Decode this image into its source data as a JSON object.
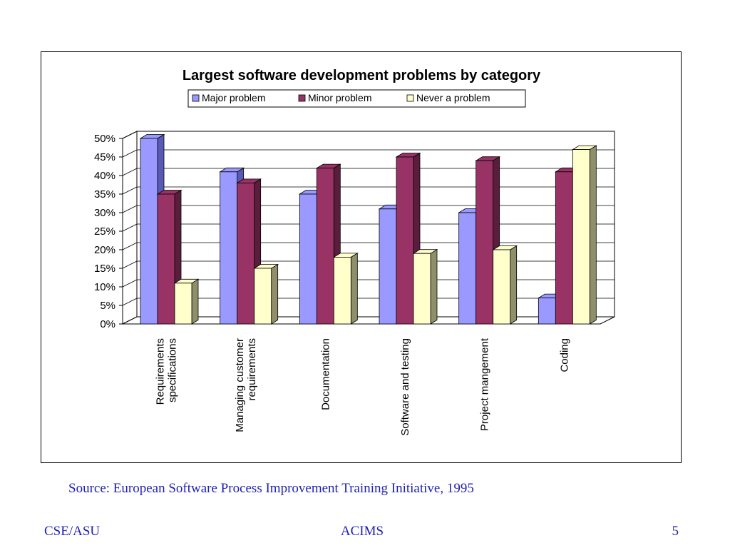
{
  "chart_data": {
    "type": "bar",
    "title": "Largest software development problems by category",
    "categories": [
      [
        "Requirements",
        "specifications"
      ],
      [
        "Managing customer",
        "requirements"
      ],
      [
        "Documentation"
      ],
      [
        "Software and testing"
      ],
      [
        "Project mangement"
      ],
      [
        "Coding"
      ]
    ],
    "series": [
      {
        "name": "Major problem",
        "values": [
          50,
          41,
          35,
          31,
          30,
          7
        ],
        "color": "#9999ff",
        "side": "#5a5ab5"
      },
      {
        "name": "Minor problem",
        "values": [
          35,
          38,
          42,
          45,
          44,
          41
        ],
        "color": "#993366",
        "side": "#5a1e3c"
      },
      {
        "name": "Never a problem",
        "values": [
          11,
          15,
          18,
          19,
          20,
          47
        ],
        "color": "#ffffcc",
        "side": "#8f8f6c"
      }
    ],
    "ylim": [
      0,
      50
    ],
    "yticks": [
      "0%",
      "5%",
      "10%",
      "15%",
      "20%",
      "25%",
      "30%",
      "35%",
      "40%",
      "45%",
      "50%"
    ],
    "grid": true,
    "legend_position": "top-center",
    "bar_style": "3d"
  },
  "source_text": "Source: European Software Process Improvement Training Initiative, 1995",
  "footer": {
    "left": "CSE/ASU",
    "center": "ACIMS",
    "right": "5"
  }
}
